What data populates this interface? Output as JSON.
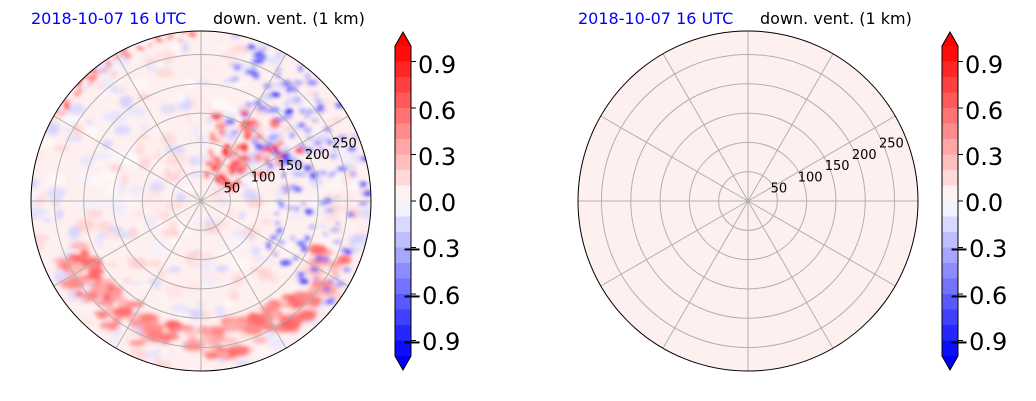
{
  "colors": {
    "date_color": "#0000ff",
    "colormap": "bwr",
    "grid_color": "#b0b0b0",
    "uniform_fill": "#fff0f0"
  },
  "chart_data": [
    {
      "type": "heatmap",
      "projection": "polar",
      "title_date": "2018-10-07 16 UTC",
      "title_desc": "down. vent. (1 km)",
      "radial_ticks": [
        "50",
        "100",
        "150",
        "200",
        "250"
      ],
      "radial_values": [
        50,
        100,
        150,
        200,
        250
      ],
      "rlim": [
        0,
        290
      ],
      "grid": true,
      "angular_gridlines_deg": [
        0,
        30,
        60,
        90,
        120,
        150,
        180,
        210,
        240,
        270,
        300,
        330
      ],
      "field": "mixed small-scale positive/negative values; strong negative (blue) streaks toward east and north-east, positive (red) arc in the south, most values near zero",
      "colorbar": {
        "ticks": [
          "0.9",
          "0.6",
          "0.3",
          "0.0",
          "−0.3",
          "−0.6",
          "−0.9"
        ],
        "tick_values": [
          0.9,
          0.6,
          0.3,
          0.0,
          -0.3,
          -0.6,
          -0.9
        ],
        "range": [
          -1.0,
          1.0
        ],
        "extend": "both"
      }
    },
    {
      "type": "heatmap",
      "projection": "polar",
      "title_date": "2018-10-07 16 UTC",
      "title_desc": "down. vent. (1 km)",
      "radial_ticks": [
        "50",
        "100",
        "150",
        "200",
        "250"
      ],
      "radial_values": [
        50,
        100,
        150,
        200,
        250
      ],
      "rlim": [
        0,
        290
      ],
      "grid": true,
      "angular_gridlines_deg": [
        0,
        30,
        60,
        90,
        120,
        150,
        180,
        210,
        240,
        270,
        300,
        330
      ],
      "field": "uniform value slightly above 0.0 over the whole domain",
      "colorbar": {
        "ticks": [
          "0.9",
          "0.6",
          "0.3",
          "0.0",
          "−0.3",
          "−0.6",
          "−0.9"
        ],
        "tick_values": [
          0.9,
          0.6,
          0.3,
          0.0,
          -0.3,
          -0.6,
          -0.9
        ],
        "range": [
          -1.0,
          1.0
        ],
        "extend": "both"
      }
    }
  ]
}
